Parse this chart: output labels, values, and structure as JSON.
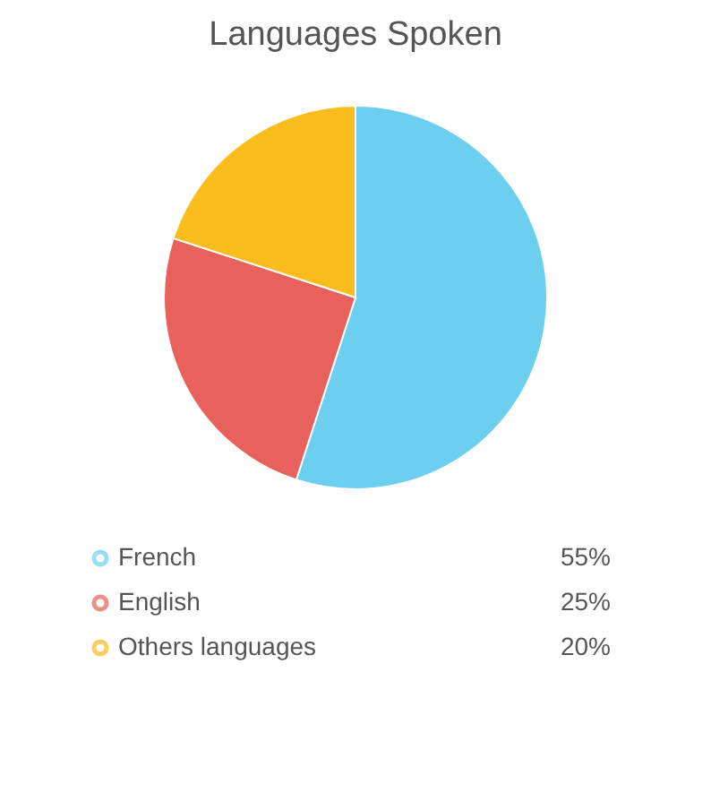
{
  "chart_data": {
    "type": "pie",
    "title": "Languages Spoken",
    "categories": [
      "French",
      "English",
      "Others languages"
    ],
    "values": [
      55,
      25,
      20
    ],
    "value_labels": [
      "55%",
      "25%",
      "20%"
    ],
    "colors": [
      "#6dcff0",
      "#e8615a",
      "#fbbc1d"
    ],
    "legend": "bottom"
  }
}
